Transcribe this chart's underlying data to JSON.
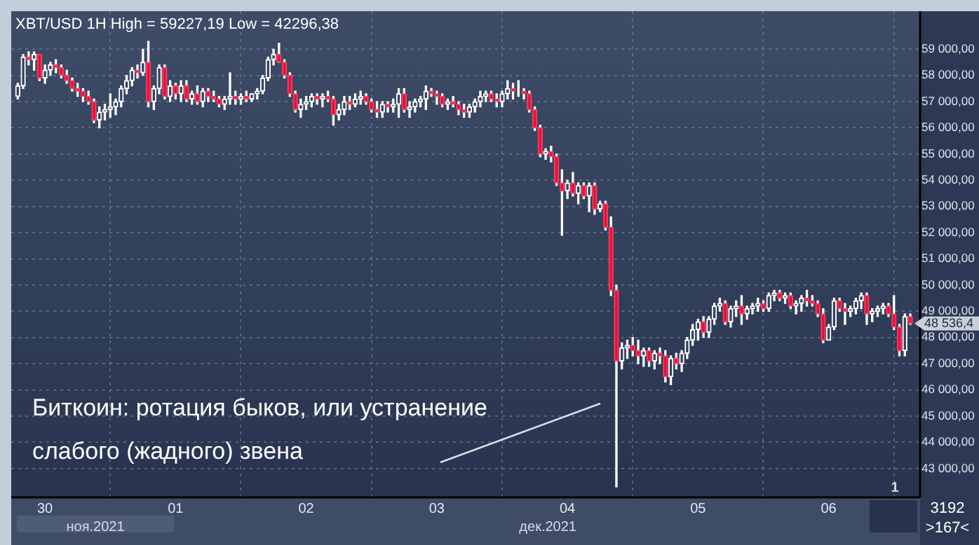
{
  "chart_data": {
    "type": "candlestick",
    "title": "XBT/USD 1H High = 59227,19 Low = 42296,38",
    "x": [
      "2021-11-29T19:00",
      "2021-11-29T20:00",
      "2021-11-29T21:00",
      "2021-11-29T22:00",
      "2021-11-29T23:00",
      "2021-11-30T00:00",
      "2021-11-30T01:00",
      "2021-11-30T02:00",
      "2021-11-30T03:00",
      "2021-11-30T04:00",
      "2021-11-30T05:00",
      "2021-11-30T06:00",
      "2021-11-30T07:00",
      "2021-11-30T08:00",
      "2021-11-30T09:00",
      "2021-11-30T10:00",
      "2021-11-30T11:00",
      "2021-11-30T12:00",
      "2021-11-30T13:00",
      "2021-11-30T14:00",
      "2021-11-30T15:00",
      "2021-11-30T16:00",
      "2021-11-30T17:00",
      "2021-11-30T18:00",
      "2021-11-30T19:00",
      "2021-11-30T20:00",
      "2021-11-30T21:00",
      "2021-11-30T22:00",
      "2021-11-30T23:00",
      "2021-12-01T00:00",
      "2021-12-01T01:00",
      "2021-12-01T02:00",
      "2021-12-01T03:00",
      "2021-12-01T04:00",
      "2021-12-01T05:00",
      "2021-12-01T06:00",
      "2021-12-01T07:00",
      "2021-12-01T08:00",
      "2021-12-01T09:00",
      "2021-12-01T10:00",
      "2021-12-01T11:00",
      "2021-12-01T12:00",
      "2021-12-01T13:00",
      "2021-12-01T14:00",
      "2021-12-01T15:00",
      "2021-12-01T16:00",
      "2021-12-01T17:00",
      "2021-12-01T18:00",
      "2021-12-01T19:00",
      "2021-12-01T20:00",
      "2021-12-01T21:00",
      "2021-12-01T22:00",
      "2021-12-01T23:00",
      "2021-12-02T00:00",
      "2021-12-02T01:00",
      "2021-12-02T02:00",
      "2021-12-02T03:00",
      "2021-12-02T04:00",
      "2021-12-02T05:00",
      "2021-12-02T06:00",
      "2021-12-02T07:00",
      "2021-12-02T08:00",
      "2021-12-02T09:00",
      "2021-12-02T10:00",
      "2021-12-02T11:00",
      "2021-12-02T12:00",
      "2021-12-02T13:00",
      "2021-12-02T14:00",
      "2021-12-02T15:00",
      "2021-12-02T16:00",
      "2021-12-02T17:00",
      "2021-12-02T18:00",
      "2021-12-02T19:00",
      "2021-12-02T20:00",
      "2021-12-02T21:00",
      "2021-12-02T22:00",
      "2021-12-02T23:00",
      "2021-12-03T00:00",
      "2021-12-03T01:00",
      "2021-12-03T02:00",
      "2021-12-03T03:00",
      "2021-12-03T04:00",
      "2021-12-03T05:00",
      "2021-12-03T06:00",
      "2021-12-03T07:00",
      "2021-12-03T08:00",
      "2021-12-03T09:00",
      "2021-12-03T10:00",
      "2021-12-03T11:00",
      "2021-12-03T12:00",
      "2021-12-03T13:00",
      "2021-12-03T14:00",
      "2021-12-03T15:00",
      "2021-12-03T16:00",
      "2021-12-03T17:00",
      "2021-12-03T18:00",
      "2021-12-03T19:00",
      "2021-12-03T20:00",
      "2021-12-03T21:00",
      "2021-12-03T22:00",
      "2021-12-03T23:00",
      "2021-12-04T00:00",
      "2021-12-04T01:00",
      "2021-12-04T02:00",
      "2021-12-04T03:00",
      "2021-12-04T04:00",
      "2021-12-04T05:00",
      "2021-12-04T06:00",
      "2021-12-04T07:00",
      "2021-12-04T08:00",
      "2021-12-04T09:00",
      "2021-12-04T10:00",
      "2021-12-04T11:00",
      "2021-12-04T12:00",
      "2021-12-04T13:00",
      "2021-12-04T14:00",
      "2021-12-04T15:00",
      "2021-12-04T16:00",
      "2021-12-04T17:00",
      "2021-12-04T18:00",
      "2021-12-04T19:00",
      "2021-12-04T20:00",
      "2021-12-04T21:00",
      "2021-12-04T22:00",
      "2021-12-04T23:00",
      "2021-12-05T00:00",
      "2021-12-05T01:00",
      "2021-12-05T02:00",
      "2021-12-05T03:00",
      "2021-12-05T04:00",
      "2021-12-05T05:00",
      "2021-12-05T06:00",
      "2021-12-05T07:00",
      "2021-12-05T08:00",
      "2021-12-05T09:00",
      "2021-12-05T10:00",
      "2021-12-05T11:00",
      "2021-12-05T12:00",
      "2021-12-05T13:00",
      "2021-12-05T14:00",
      "2021-12-05T15:00",
      "2021-12-05T16:00",
      "2021-12-05T17:00",
      "2021-12-05T18:00",
      "2021-12-05T19:00",
      "2021-12-05T20:00",
      "2021-12-05T21:00",
      "2021-12-05T22:00",
      "2021-12-05T23:00",
      "2021-12-06T00:00",
      "2021-12-06T01:00",
      "2021-12-06T02:00",
      "2021-12-06T03:00",
      "2021-12-06T04:00",
      "2021-12-06T05:00",
      "2021-12-06T06:00",
      "2021-12-06T07:00",
      "2021-12-06T08:00",
      "2021-12-06T09:00",
      "2021-12-06T10:00",
      "2021-12-06T11:00",
      "2021-12-06T12:00",
      "2021-12-06T13:00",
      "2021-12-06T14:00",
      "2021-12-06T15:00"
    ],
    "ohlc": [
      [
        57200,
        57700,
        57100,
        57600
      ],
      [
        57600,
        58800,
        57500,
        58700
      ],
      [
        58700,
        58900,
        58400,
        58600
      ],
      [
        58600,
        58900,
        58200,
        58800
      ],
      [
        58800,
        58800,
        57800,
        57900
      ],
      [
        57900,
        58400,
        57700,
        58200
      ],
      [
        58200,
        58500,
        58000,
        58400
      ],
      [
        58400,
        58600,
        58100,
        58300
      ],
      [
        58300,
        58400,
        57900,
        58000
      ],
      [
        58000,
        58200,
        57700,
        57800
      ],
      [
        57800,
        57900,
        57400,
        57500
      ],
      [
        57500,
        57700,
        57200,
        57400
      ],
      [
        57400,
        57500,
        57000,
        57200
      ],
      [
        57200,
        57400,
        56900,
        57000
      ],
      [
        57000,
        57100,
        56200,
        56300
      ],
      [
        56300,
        56800,
        56000,
        56600
      ],
      [
        56600,
        56900,
        56300,
        56700
      ],
      [
        56700,
        57300,
        56400,
        56800
      ],
      [
        56800,
        57100,
        56500,
        57000
      ],
      [
        57000,
        57600,
        56800,
        57500
      ],
      [
        57500,
        58000,
        57300,
        57800
      ],
      [
        57800,
        58300,
        57600,
        58200
      ],
      [
        58200,
        58400,
        57900,
        58100
      ],
      [
        58100,
        59000,
        58000,
        58500
      ],
      [
        58500,
        59300,
        56800,
        57000
      ],
      [
        57000,
        57600,
        56700,
        57500
      ],
      [
        57500,
        58400,
        57300,
        58300
      ],
      [
        58300,
        58400,
        57100,
        57200
      ],
      [
        57200,
        57800,
        57000,
        57600
      ],
      [
        57600,
        57700,
        57100,
        57300
      ],
      [
        57300,
        57800,
        57000,
        57600
      ],
      [
        57600,
        57800,
        57000,
        57100
      ],
      [
        57100,
        57400,
        56900,
        57300
      ],
      [
        57300,
        57600,
        56900,
        57000
      ],
      [
        57000,
        57500,
        56800,
        57400
      ],
      [
        57400,
        57500,
        57000,
        57200
      ],
      [
        57200,
        57400,
        57000,
        57100
      ],
      [
        57100,
        57200,
        56800,
        56900
      ],
      [
        56900,
        57200,
        56700,
        57100
      ],
      [
        57100,
        58100,
        56900,
        57200
      ],
      [
        57200,
        57400,
        56900,
        57100
      ],
      [
        57100,
        57300,
        56900,
        57200
      ],
      [
        57200,
        57400,
        57000,
        57100
      ],
      [
        57100,
        57300,
        57000,
        57300
      ],
      [
        57300,
        57500,
        57100,
        57400
      ],
      [
        57400,
        58000,
        57300,
        57900
      ],
      [
        57900,
        58700,
        57800,
        58600
      ],
      [
        58600,
        59000,
        58400,
        58800
      ],
      [
        58800,
        59227.19,
        58500,
        58500
      ],
      [
        58500,
        58600,
        57900,
        58000
      ],
      [
        58000,
        58100,
        57200,
        57300
      ],
      [
        57300,
        57400,
        56600,
        56700
      ],
      [
        56700,
        57100,
        56400,
        56900
      ],
      [
        56900,
        57200,
        56700,
        57000
      ],
      [
        57000,
        57300,
        56800,
        57200
      ],
      [
        57200,
        57300,
        56900,
        57100
      ],
      [
        57100,
        57300,
        56800,
        57200
      ],
      [
        57200,
        57400,
        57000,
        57100
      ],
      [
        57100,
        57200,
        56100,
        56500
      ],
      [
        56500,
        56900,
        56300,
        56700
      ],
      [
        56700,
        57200,
        56500,
        57000
      ],
      [
        57000,
        57200,
        56700,
        56900
      ],
      [
        56900,
        57300,
        56800,
        57100
      ],
      [
        57100,
        57400,
        56900,
        57200
      ],
      [
        57200,
        57300,
        56900,
        57000
      ],
      [
        57000,
        57100,
        56600,
        56700
      ],
      [
        56700,
        57000,
        56400,
        56600
      ],
      [
        56600,
        57000,
        56400,
        56900
      ],
      [
        56900,
        57000,
        56600,
        56800
      ],
      [
        56800,
        57100,
        56600,
        56900
      ],
      [
        56900,
        57500,
        56400,
        57300
      ],
      [
        57300,
        57500,
        56600,
        56700
      ],
      [
        56700,
        57000,
        56400,
        56800
      ],
      [
        56800,
        57100,
        56600,
        57000
      ],
      [
        57000,
        57200,
        56800,
        57100
      ],
      [
        57100,
        57600,
        56700,
        57400
      ],
      [
        57400,
        57500,
        57200,
        57300
      ],
      [
        57300,
        57400,
        56900,
        57200
      ],
      [
        57200,
        57300,
        56800,
        56900
      ],
      [
        56900,
        57100,
        56700,
        57000
      ],
      [
        57000,
        57200,
        56800,
        56900
      ],
      [
        56900,
        57000,
        56500,
        56700
      ],
      [
        56700,
        56900,
        56400,
        56600
      ],
      [
        56600,
        56900,
        56400,
        56800
      ],
      [
        56800,
        57100,
        56600,
        57000
      ],
      [
        57000,
        57400,
        56800,
        57200
      ],
      [
        57200,
        57400,
        57000,
        57300
      ],
      [
        57300,
        57400,
        57000,
        57100
      ],
      [
        57100,
        57300,
        56800,
        57000
      ],
      [
        57000,
        57400,
        56800,
        57300
      ],
      [
        57300,
        57800,
        57100,
        57500
      ],
      [
        57500,
        57700,
        57100,
        57400
      ],
      [
        57400,
        57800,
        57200,
        57400
      ],
      [
        57400,
        57500,
        57100,
        57300
      ],
      [
        57300,
        57400,
        56600,
        56700
      ],
      [
        56700,
        56800,
        55900,
        56000
      ],
      [
        56000,
        56100,
        54900,
        55000
      ],
      [
        55000,
        55200,
        54800,
        55100
      ],
      [
        55100,
        55300,
        54700,
        54900
      ],
      [
        54900,
        55000,
        53800,
        53900
      ],
      [
        53900,
        54400,
        51900,
        53600
      ],
      [
        53600,
        54000,
        53300,
        53900
      ],
      [
        53900,
        54300,
        53400,
        53500
      ],
      [
        53500,
        53900,
        53100,
        53800
      ],
      [
        53800,
        53900,
        53300,
        53400
      ],
      [
        53400,
        53900,
        52800,
        53800
      ],
      [
        53800,
        53900,
        52700,
        52900
      ],
      [
        52900,
        53200,
        52800,
        53100
      ],
      [
        53100,
        53200,
        52100,
        52200
      ],
      [
        52200,
        52600,
        49600,
        49800
      ],
      [
        49800,
        50000,
        42296.38,
        47100
      ],
      [
        47100,
        47800,
        46800,
        47600
      ],
      [
        47600,
        47900,
        47200,
        47700
      ],
      [
        47700,
        48000,
        47300,
        47500
      ],
      [
        47500,
        47900,
        47000,
        47300
      ],
      [
        47300,
        47600,
        46900,
        47500
      ],
      [
        47500,
        47600,
        46900,
        47100
      ],
      [
        47100,
        47500,
        46800,
        47400
      ],
      [
        47400,
        47600,
        47000,
        47300
      ],
      [
        47300,
        47500,
        46300,
        46500
      ],
      [
        46500,
        47300,
        46200,
        47200
      ],
      [
        47200,
        47400,
        46800,
        47000
      ],
      [
        47000,
        47500,
        46700,
        47400
      ],
      [
        47400,
        48000,
        47200,
        47900
      ],
      [
        47900,
        48500,
        47700,
        48300
      ],
      [
        48300,
        48700,
        47900,
        48600
      ],
      [
        48600,
        48800,
        48000,
        48200
      ],
      [
        48200,
        48800,
        48000,
        48700
      ],
      [
        48700,
        49300,
        48500,
        49200
      ],
      [
        49200,
        49500,
        49000,
        49300
      ],
      [
        49300,
        49400,
        48500,
        48600
      ],
      [
        48600,
        49200,
        48400,
        49100
      ],
      [
        49100,
        49400,
        48800,
        49200
      ],
      [
        49200,
        49600,
        48500,
        48900
      ],
      [
        48900,
        49200,
        48700,
        49100
      ],
      [
        49100,
        49300,
        48900,
        49200
      ],
      [
        49200,
        49500,
        49000,
        49300
      ],
      [
        49300,
        49400,
        49000,
        49100
      ],
      [
        49100,
        49700,
        49000,
        49600
      ],
      [
        49600,
        49800,
        49400,
        49700
      ],
      [
        49700,
        49800,
        49400,
        49500
      ],
      [
        49500,
        49700,
        49300,
        49600
      ],
      [
        49600,
        49700,
        49100,
        49200
      ],
      [
        49200,
        49400,
        48900,
        49300
      ],
      [
        49300,
        49600,
        49000,
        49500
      ],
      [
        49500,
        49800,
        49200,
        49400
      ],
      [
        49400,
        49600,
        49200,
        49300
      ],
      [
        49300,
        49400,
        48800,
        48900
      ],
      [
        48900,
        49100,
        47800,
        47900
      ],
      [
        47900,
        48500,
        47900,
        48400
      ],
      [
        48400,
        49500,
        48300,
        49400
      ],
      [
        49400,
        49500,
        49000,
        49100
      ],
      [
        49100,
        49300,
        48500,
        49000
      ],
      [
        49000,
        49200,
        48800,
        49100
      ],
      [
        49100,
        49500,
        48900,
        49400
      ],
      [
        49400,
        49700,
        49100,
        49600
      ],
      [
        49600,
        49700,
        48500,
        48900
      ],
      [
        48900,
        49100,
        48600,
        49000
      ],
      [
        49000,
        49200,
        48800,
        49100
      ],
      [
        49100,
        49300,
        48900,
        49200
      ],
      [
        49200,
        49300,
        48800,
        48900
      ],
      [
        48900,
        49600,
        48300,
        48400
      ],
      [
        48400,
        48500,
        47300,
        47500
      ],
      [
        47500,
        48900,
        47300,
        48800
      ],
      [
        48800,
        48900,
        48500,
        48536.4
      ]
    ],
    "xlim": [
      "2021-11-29T17:48",
      "2021-12-06T16:48"
    ],
    "xticks": [
      {
        "value": "2021-11-30",
        "label": "30"
      },
      {
        "value": "2021-12-01",
        "label": "01"
      },
      {
        "value": "2021-12-02",
        "label": "02"
      },
      {
        "value": "2021-12-03",
        "label": "03"
      },
      {
        "value": "2021-12-04",
        "label": "04"
      },
      {
        "value": "2021-12-05",
        "label": "05"
      },
      {
        "value": "2021-12-06",
        "label": "06"
      }
    ],
    "ylim": [
      41900,
      60450
    ],
    "yticks": [
      {
        "value": 43000,
        "label": "43 000,00"
      },
      {
        "value": 44000,
        "label": "44 000,00"
      },
      {
        "value": 45000,
        "label": "45 000,00"
      },
      {
        "value": 46000,
        "label": "46 000,00"
      },
      {
        "value": 47000,
        "label": "47 000,00"
      },
      {
        "value": 48000,
        "label": "48 000,00"
      },
      {
        "value": 49000,
        "label": "49 000,00"
      },
      {
        "value": 50000,
        "label": "50 000,00"
      },
      {
        "value": 51000,
        "label": "51 000,00"
      },
      {
        "value": 52000,
        "label": "52 000,00"
      },
      {
        "value": 53000,
        "label": "53 000,00"
      },
      {
        "value": 54000,
        "label": "54 000,00"
      },
      {
        "value": 55000,
        "label": "55 000,00"
      },
      {
        "value": 56000,
        "label": "56 000,00"
      },
      {
        "value": 57000,
        "label": "57 000,00"
      },
      {
        "value": 58000,
        "label": "58 000,00"
      },
      {
        "value": 59000,
        "label": "59 000,00"
      }
    ],
    "grid": true,
    "annotations": [
      "Биткоин: ротация быков, или устранение слабого (жадного) звена",
      "ноя.2021",
      "дек.2021",
      "1",
      "3192",
      ">167<",
      "48 536,4"
    ]
  }
}
